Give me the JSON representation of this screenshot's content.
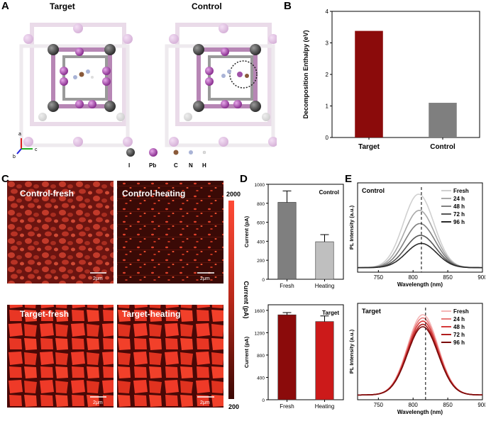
{
  "panels": {
    "A": {
      "label": "A",
      "titles": [
        "Target",
        "Control"
      ],
      "axes": [
        "a",
        "b",
        "c"
      ],
      "legend": [
        {
          "symbol": "I",
          "color": "#7b6e9a"
        },
        {
          "symbol": "Pb",
          "color": "#a052a8"
        },
        {
          "symbol": "C",
          "color": "#8a5a3a"
        },
        {
          "symbol": "N",
          "color": "#a9b3d6"
        },
        {
          "symbol": "H",
          "color": "#e8e8e8"
        }
      ]
    },
    "B": {
      "label": "B"
    },
    "C": {
      "label": "C",
      "images": [
        {
          "title": "Control-fresh",
          "scale": "2μm"
        },
        {
          "title": "Control-heating",
          "scale": "2μm"
        },
        {
          "title": "Target-fresh",
          "scale": "2μm"
        },
        {
          "title": "Target-heating",
          "scale": "2μm"
        }
      ],
      "colorbar": {
        "max": "2000",
        "min": "200",
        "label": "Current (pA)"
      }
    },
    "D": {
      "label": "D"
    },
    "E": {
      "label": "E"
    }
  },
  "chart_data": [
    {
      "id": "B",
      "type": "bar",
      "categories": [
        "Target",
        "Control"
      ],
      "values": [
        3.38,
        1.1
      ],
      "colors": [
        "#8b0b0b",
        "#7f7f7f"
      ],
      "ylabel": "Decomposition Enthalpy (eV)",
      "ylim": [
        0,
        4
      ],
      "yticks": [
        "0",
        "1",
        "2",
        "3",
        "4"
      ]
    },
    {
      "id": "D-control",
      "type": "bar",
      "title": "Control",
      "categories": [
        "Fresh",
        "Heating"
      ],
      "values": [
        810,
        395
      ],
      "errors": [
        120,
        75
      ],
      "colors": [
        "#7f7f7f",
        "#bfbfbf"
      ],
      "ylabel": "Current (pA)",
      "ylim": [
        0,
        1000
      ],
      "yticks": [
        "0",
        "200",
        "400",
        "600",
        "800",
        "1000"
      ]
    },
    {
      "id": "D-target",
      "type": "bar",
      "title": "Target",
      "categories": [
        "Fresh",
        "Heating"
      ],
      "values": [
        1520,
        1400
      ],
      "errors": [
        40,
        100
      ],
      "colors": [
        "#8b0b0b",
        "#cc1a1a"
      ],
      "ylabel": "Current (pA)",
      "ylim": [
        0,
        1700
      ],
      "yticks": [
        "0",
        "400",
        "800",
        "1200",
        "1600"
      ]
    },
    {
      "id": "E-control",
      "type": "line",
      "title": "Control",
      "xlabel": "Wavelength (nm)",
      "ylabel": "PL Intensity (a.u.)",
      "xlim": [
        720,
        900
      ],
      "xticks": [
        "750",
        "800",
        "850",
        "900"
      ],
      "series": [
        {
          "name": "Fresh",
          "peak": 808,
          "amplitude": 1.0,
          "color": "#d0d0d0"
        },
        {
          "name": "24 h",
          "peak": 809,
          "amplitude": 0.78,
          "color": "#a9a9a9"
        },
        {
          "name": "48 h",
          "peak": 810,
          "amplitude": 0.6,
          "color": "#808080"
        },
        {
          "name": "72 h",
          "peak": 811,
          "amplitude": 0.44,
          "color": "#555555"
        },
        {
          "name": "96 h",
          "peak": 812,
          "amplitude": 0.33,
          "color": "#2a2a2a"
        }
      ]
    },
    {
      "id": "E-target",
      "type": "line",
      "title": "Target",
      "xlabel": "Wavelength (nm)",
      "ylabel": "PL Intensity (a.u.)",
      "xlim": [
        720,
        900
      ],
      "xticks": [
        "750",
        "800",
        "850",
        "900"
      ],
      "series": [
        {
          "name": "Fresh",
          "peak": 814,
          "amplitude": 1.0,
          "color": "#f4b6b6"
        },
        {
          "name": "24 h",
          "peak": 814,
          "amplitude": 0.96,
          "color": "#e87a7a"
        },
        {
          "name": "48 h",
          "peak": 814,
          "amplitude": 0.92,
          "color": "#d63a3a"
        },
        {
          "name": "72 h",
          "peak": 814,
          "amplitude": 0.88,
          "color": "#b01e1e"
        },
        {
          "name": "96 h",
          "peak": 814,
          "amplitude": 0.85,
          "color": "#7a0a0a"
        }
      ]
    }
  ]
}
